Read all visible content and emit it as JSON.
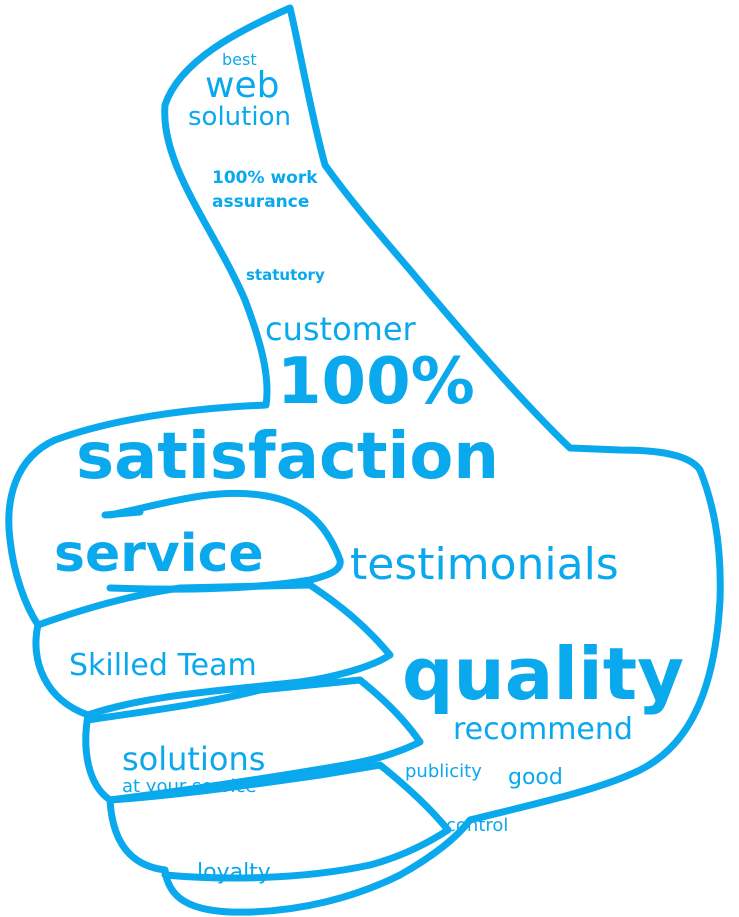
{
  "colors": {
    "accent": "#0aa8ec",
    "background": "#ffffff"
  },
  "icons": [
    "thumbs-up-outline"
  ],
  "words": {
    "best": "best",
    "web": "web",
    "solution": "solution",
    "work": "100% work",
    "assurance": "assurance",
    "statutory": "statutory",
    "customer": "customer",
    "hundred": "100%",
    "satisfaction": "satisfaction",
    "service": "service",
    "testimonials": "testimonials",
    "skilled_team": "Skilled Team",
    "quality": "quality",
    "recommend": "recommend",
    "solutions": "solutions",
    "at_your_service": "at your service",
    "publicity": "publicity",
    "good": "good",
    "control": "control",
    "loyalty": "loyalty"
  }
}
